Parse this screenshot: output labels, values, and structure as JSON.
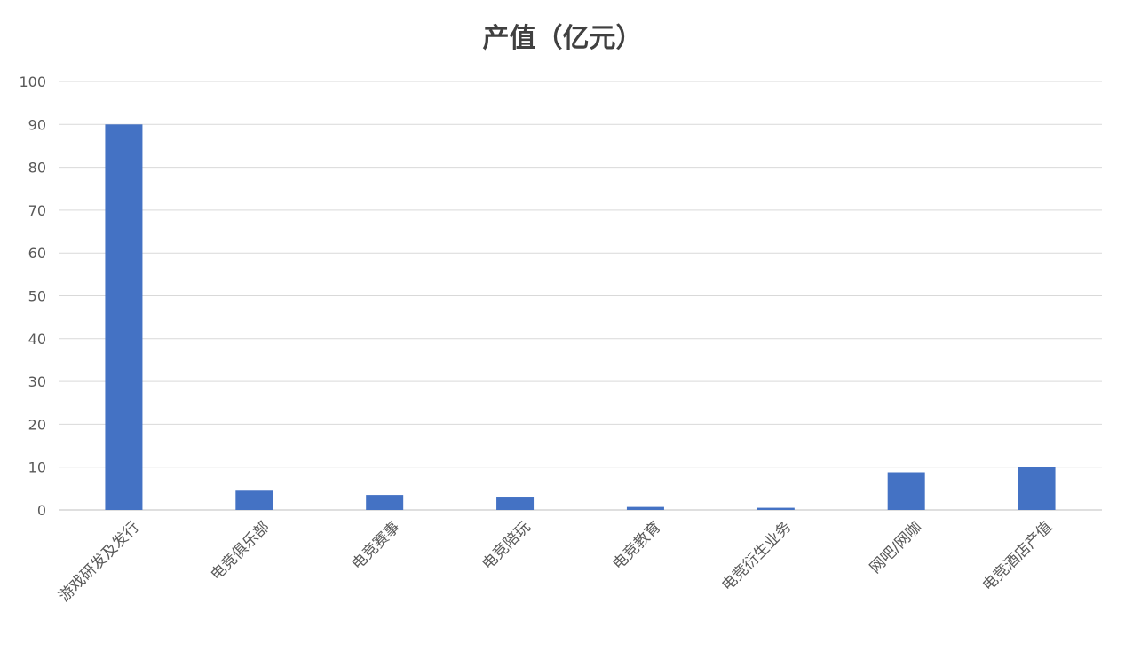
{
  "chart_data": {
    "type": "bar",
    "title": "产值（亿元）",
    "xlabel": "",
    "ylabel": "",
    "categories": [
      "游戏研发及发行",
      "电竞俱乐部",
      "电竞赛事",
      "电竞陪玩",
      "电竞教育",
      "电竞衍生业务",
      "网吧/网咖",
      "电竞酒店产值"
    ],
    "values": [
      90,
      4.5,
      3.5,
      3.1,
      0.7,
      0.5,
      8.8,
      10.1
    ],
    "ylim": [
      0,
      100
    ],
    "yticks": [
      "0",
      "10",
      "20",
      "30",
      "40",
      "50",
      "60",
      "70",
      "80",
      "90",
      "100"
    ],
    "grid": true,
    "legend": "none",
    "bar_color": "#4472C4",
    "grid_color": "#D9D9D9"
  }
}
